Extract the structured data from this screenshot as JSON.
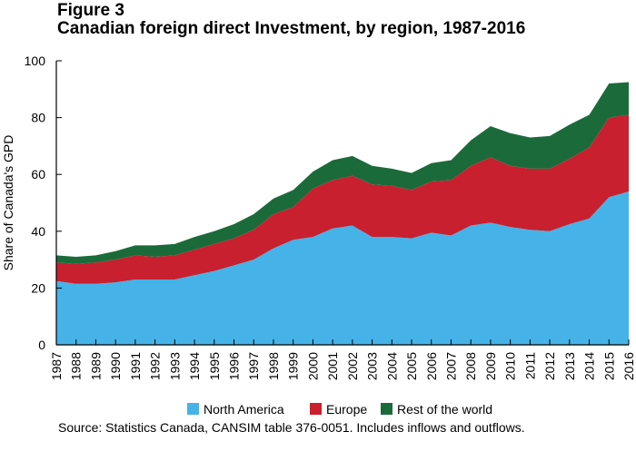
{
  "figure_label": "Figure 3",
  "title": "Canadian foreign direct Investment, by region, 1987-2016",
  "source_note": "Source: Statistics Canada, CANSIM table 376-0051. Includes inflows and outflows.",
  "colors": {
    "north_america": "#45b3e8",
    "europe": "#c8202f",
    "rest_of_world": "#1b6b3a"
  },
  "chart_data": {
    "type": "area",
    "stacked": true,
    "title": "Canadian foreign direct Investment, by region, 1987-2016",
    "xlabel": "",
    "ylabel": "Share of Canada's GPD",
    "ylim": [
      0,
      100
    ],
    "yticks": [
      0,
      20,
      40,
      60,
      80,
      100
    ],
    "grid": false,
    "legend": "bottom",
    "x": [
      "1987",
      "1988",
      "1989",
      "1990",
      "1991",
      "1992",
      "1993",
      "1994",
      "1995",
      "1996",
      "1997",
      "1998",
      "1999",
      "2000",
      "2001",
      "2002",
      "2003",
      "2004",
      "2005",
      "2006",
      "2007",
      "2008",
      "2009",
      "2010",
      "2011",
      "2012",
      "2013",
      "2014",
      "2015",
      "2016"
    ],
    "series": [
      {
        "name": "North America",
        "values": [
          22.5,
          21.5,
          21.5,
          22,
          23,
          23,
          23,
          24.5,
          26,
          28,
          30,
          34,
          37,
          38,
          41,
          42,
          38,
          38,
          37.5,
          39.5,
          38.5,
          42,
          43,
          41.5,
          40.5,
          40,
          42.5,
          44.5,
          52,
          54
        ]
      },
      {
        "name": "Europe",
        "values": [
          6.5,
          7,
          7.5,
          8,
          8.5,
          8,
          8.5,
          9,
          9.5,
          9.5,
          10.5,
          12,
          11.5,
          17,
          17,
          17.5,
          18.5,
          18,
          17,
          18,
          19.5,
          21,
          23,
          21.5,
          21.5,
          22,
          23,
          25,
          28,
          27
        ]
      },
      {
        "name": "Rest of the world",
        "values": [
          2.5,
          2.5,
          2.5,
          3,
          3.5,
          4,
          4,
          4.5,
          4.5,
          5,
          5.5,
          5.5,
          6,
          6,
          7,
          7,
          6.5,
          6,
          6,
          6.5,
          7,
          9,
          11,
          11.5,
          11,
          11.5,
          12,
          11.5,
          12,
          11.5
        ]
      }
    ]
  }
}
